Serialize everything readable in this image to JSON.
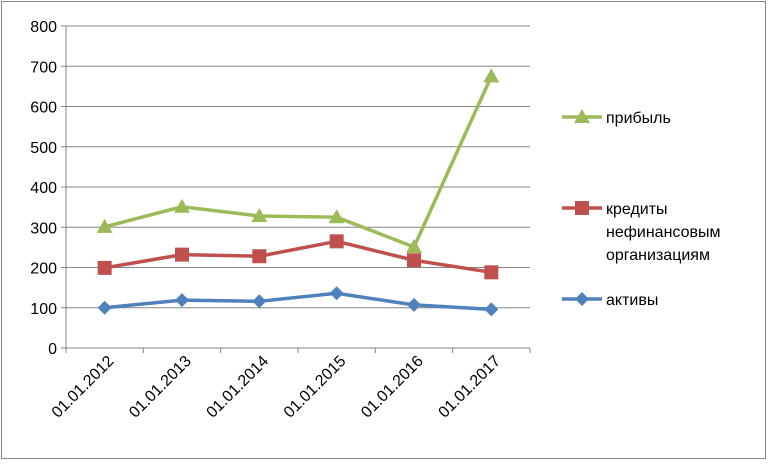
{
  "chart_data": {
    "type": "line",
    "categories": [
      "01.01.2012",
      "01.01.2013",
      "01.01.2014",
      "01.01.2015",
      "01.01.2016",
      "01.01.2017"
    ],
    "ylim": [
      0,
      800
    ],
    "yticks": [
      "0",
      "100",
      "200",
      "300",
      "400",
      "500",
      "600",
      "700",
      "800"
    ],
    "grid": "horizontal",
    "legend_position": "right",
    "series": [
      {
        "name": "прибыль",
        "legend_lines": [
          "прибыль"
        ],
        "values": [
          301,
          351,
          328,
          325,
          251,
          675
        ],
        "color": "#9bbb59",
        "marker": "triangle"
      },
      {
        "name": "кредиты нефинансовым организациям",
        "legend_lines": [
          "кредиты",
          "нефинансовым",
          "организациям"
        ],
        "values": [
          199,
          232,
          228,
          265,
          218,
          188
        ],
        "color": "#c0504d",
        "marker": "square"
      },
      {
        "name": "активы",
        "legend_lines": [
          "активы"
        ],
        "values": [
          100,
          119,
          116,
          136,
          107,
          96
        ],
        "color": "#4f81bd",
        "marker": "diamond"
      }
    ]
  }
}
